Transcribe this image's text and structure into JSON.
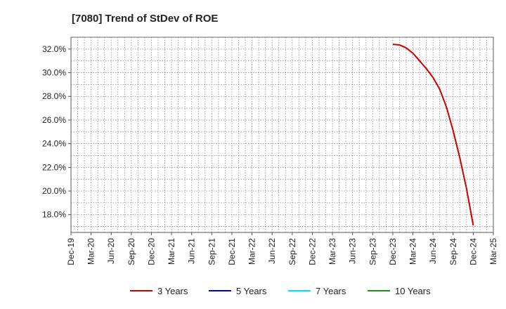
{
  "chart_data": {
    "type": "line",
    "title": "[7080]  Trend of StDev of ROE",
    "xlabel": "",
    "ylabel": "",
    "x_ticks": [
      "Dec-19",
      "Mar-20",
      "Jun-20",
      "Sep-20",
      "Dec-20",
      "Mar-21",
      "Jun-21",
      "Sep-21",
      "Dec-21",
      "Mar-22",
      "Jun-22",
      "Sep-22",
      "Dec-22",
      "Mar-23",
      "Jun-23",
      "Sep-23",
      "Dec-23",
      "Mar-24",
      "Jun-24",
      "Sep-24",
      "Dec-24",
      "Mar-25"
    ],
    "y_ticks": [
      "18.0%",
      "20.0%",
      "22.0%",
      "24.0%",
      "26.0%",
      "28.0%",
      "30.0%",
      "32.0%"
    ],
    "ylim": [
      16.5,
      33.0
    ],
    "grid": true,
    "legend_position": "bottom",
    "series": [
      {
        "name": "3 Years",
        "color": "#cc0000",
        "points": [
          [
            "Dec-23",
            32.4
          ],
          [
            "Jan-24",
            32.35
          ],
          [
            "Feb-24",
            32.1
          ],
          [
            "Mar-24",
            31.65
          ],
          [
            "Apr-24",
            31.0
          ],
          [
            "May-24",
            30.35
          ],
          [
            "Jun-24",
            29.6
          ],
          [
            "Jul-24",
            28.6
          ],
          [
            "Aug-24",
            27.1
          ],
          [
            "Sep-24",
            25.1
          ],
          [
            "Oct-24",
            22.8
          ],
          [
            "Nov-24",
            20.2
          ],
          [
            "Dec-24",
            17.1
          ]
        ]
      },
      {
        "name": "5 Years",
        "color": "#0000cc",
        "points": []
      },
      {
        "name": "7 Years",
        "color": "#00e5ee",
        "points": []
      },
      {
        "name": "10 Years",
        "color": "#228b22",
        "points": []
      }
    ]
  }
}
